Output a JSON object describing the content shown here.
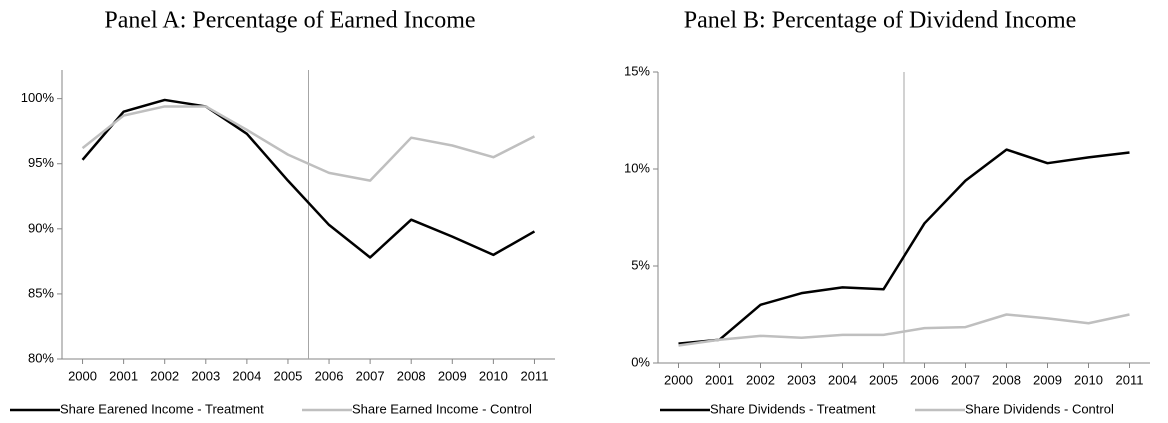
{
  "chart_data": [
    {
      "type": "line",
      "title": "Panel A: Percentage of Earned Income",
      "x": [
        2000,
        2001,
        2002,
        2003,
        2004,
        2005,
        2006,
        2007,
        2008,
        2009,
        2010,
        2011
      ],
      "xlim": [
        1999.5,
        2011.5
      ],
      "xticks": [
        2000,
        2001,
        2002,
        2003,
        2004,
        2005,
        2006,
        2007,
        2008,
        2009,
        2010,
        2011
      ],
      "ylim": [
        80,
        102.2
      ],
      "yticks": [
        {
          "value": 80,
          "label": "80%"
        },
        {
          "value": 85,
          "label": "85%"
        },
        {
          "value": 90,
          "label": "90%"
        },
        {
          "value": 95,
          "label": "95%"
        },
        {
          "value": 100,
          "label": "100%"
        }
      ],
      "vline": 2005.5,
      "vline_color": "#a6a6a6",
      "grid": false,
      "legend": "bottom",
      "series": [
        {
          "name": "Share Earened Income - Treatment",
          "color": "#000000",
          "values": [
            95.3,
            99.0,
            99.9,
            99.4,
            97.3,
            93.7,
            90.3,
            87.8,
            90.7,
            89.4,
            88.0,
            89.8
          ]
        },
        {
          "name": "Share Earned Income - Control",
          "color": "#bfbfbf",
          "values": [
            96.2,
            98.7,
            99.4,
            99.4,
            97.6,
            95.7,
            94.3,
            93.7,
            97.0,
            96.4,
            95.5,
            97.1
          ]
        }
      ]
    },
    {
      "type": "line",
      "title": "Panel B: Percentage of Dividend Income",
      "x": [
        2000,
        2001,
        2002,
        2003,
        2004,
        2005,
        2006,
        2007,
        2008,
        2009,
        2010,
        2011
      ],
      "xlim": [
        1999.5,
        2011.5
      ],
      "xticks": [
        2000,
        2001,
        2002,
        2003,
        2004,
        2005,
        2006,
        2007,
        2008,
        2009,
        2010,
        2011
      ],
      "ylim": [
        0,
        15
      ],
      "yticks": [
        {
          "value": 0,
          "label": "0%"
        },
        {
          "value": 5,
          "label": "5%"
        },
        {
          "value": 10,
          "label": "10%"
        },
        {
          "value": 15,
          "label": "15%"
        }
      ],
      "vline": 2005.5,
      "vline_color": "#a6a6a6",
      "grid": false,
      "legend": "bottom",
      "series": [
        {
          "name": "Share Dividends - Treatment",
          "color": "#000000",
          "values": [
            1.0,
            1.2,
            3.0,
            3.6,
            3.9,
            3.8,
            7.2,
            9.4,
            11.0,
            10.3,
            10.6,
            10.85
          ]
        },
        {
          "name": "Share Dividends - Control",
          "color": "#bfbfbf",
          "values": [
            0.9,
            1.2,
            1.4,
            1.3,
            1.45,
            1.45,
            1.8,
            1.85,
            2.5,
            2.3,
            2.05,
            2.5
          ]
        }
      ]
    }
  ]
}
